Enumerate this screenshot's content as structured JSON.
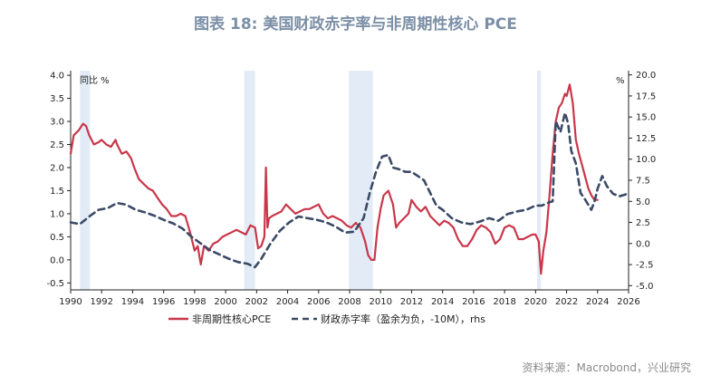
{
  "title": "图表 18: 美国财政赤字率与非周期性核心 PCE",
  "source": "资料来源：Macrobond，兴业研究",
  "chart_data": {
    "type": "line",
    "title": "图表 18: 美国财政赤字率与非周期性核心 PCE",
    "left_unit": "同比 %",
    "right_unit": "%",
    "x_ticks": [
      "1990",
      "1992",
      "1994",
      "1996",
      "1998",
      "2000",
      "2002",
      "2004",
      "2006",
      "2008",
      "2010",
      "2012",
      "2014",
      "2016",
      "2018",
      "2020",
      "2022",
      "2024",
      "2026"
    ],
    "left_ticks": [
      "4.0",
      "3.5",
      "3.0",
      "2.5",
      "2.0",
      "1.5",
      "1.0",
      "0.5",
      "0.0",
      "-0.5"
    ],
    "right_ticks": [
      "20.0",
      "17.5",
      "15.0",
      "12.5",
      "10.0",
      "7.5",
      "5.0",
      "2.5",
      "0.0",
      "-2.5",
      "-5.0"
    ],
    "xlim": [
      1990,
      2026
    ],
    "ylim_left": [
      -0.65,
      4.1
    ],
    "ylim_right": [
      -5.5,
      20.5
    ],
    "recessions": [
      [
        1990.6,
        1991.25
      ],
      [
        2001.2,
        2001.9
      ],
      [
        2007.95,
        2009.5
      ],
      [
        2020.1,
        2020.35
      ]
    ],
    "colors": {
      "pce": "#c8374a",
      "deficit": "#3b4a66",
      "recession": "#e3ecf6"
    },
    "series": [
      {
        "name": "非周期性核心PCE",
        "axis": "left",
        "x": [
          1990.0,
          1990.2,
          1990.5,
          1990.8,
          1991.0,
          1991.2,
          1991.5,
          1991.8,
          1992.0,
          1992.3,
          1992.6,
          1992.9,
          1993.0,
          1993.3,
          1993.6,
          1993.9,
          1994.1,
          1994.4,
          1994.7,
          1995.0,
          1995.3,
          1995.6,
          1995.9,
          1996.2,
          1996.5,
          1996.8,
          1997.1,
          1997.4,
          1997.7,
          1998.0,
          1998.2,
          1998.4,
          1998.6,
          1998.9,
          1999.2,
          1999.5,
          1999.8,
          2000.1,
          2000.4,
          2000.7,
          2001.0,
          2001.3,
          2001.6,
          2001.9,
          2002.1,
          2002.3,
          2002.5,
          2002.6,
          2002.7,
          2002.8,
          2003.0,
          2003.3,
          2003.6,
          2003.9,
          2004.2,
          2004.5,
          2004.8,
          2005.1,
          2005.4,
          2005.7,
          2006.0,
          2006.3,
          2006.6,
          2006.9,
          2007.2,
          2007.5,
          2007.8,
          2008.1,
          2008.4,
          2008.7,
          2009.0,
          2009.2,
          2009.4,
          2009.6,
          2009.8,
          2010.0,
          2010.2,
          2010.5,
          2010.8,
          2011.0,
          2011.2,
          2011.5,
          2011.8,
          2012.0,
          2012.3,
          2012.6,
          2012.9,
          2013.2,
          2013.5,
          2013.8,
          2014.1,
          2014.4,
          2014.7,
          2015.0,
          2015.3,
          2015.6,
          2015.9,
          2016.2,
          2016.5,
          2016.8,
          2017.1,
          2017.4,
          2017.7,
          2018.0,
          2018.3,
          2018.6,
          2018.9,
          2019.2,
          2019.5,
          2019.8,
          2020.0,
          2020.2,
          2020.35,
          2020.5,
          2020.7,
          2020.9,
          2021.1,
          2021.3,
          2021.5,
          2021.7,
          2021.9,
          2022.0,
          2022.2,
          2022.4,
          2022.6,
          2022.8,
          2023.0,
          2023.2,
          2023.4,
          2023.6,
          2023.8,
          2024.0
        ],
        "values": [
          2.3,
          2.7,
          2.8,
          2.95,
          2.9,
          2.7,
          2.5,
          2.55,
          2.6,
          2.5,
          2.45,
          2.6,
          2.5,
          2.3,
          2.35,
          2.2,
          2.0,
          1.75,
          1.65,
          1.55,
          1.5,
          1.35,
          1.2,
          1.1,
          0.95,
          0.95,
          1.0,
          0.95,
          0.6,
          0.2,
          0.3,
          -0.1,
          0.3,
          0.2,
          0.35,
          0.4,
          0.5,
          0.55,
          0.6,
          0.65,
          0.6,
          0.55,
          0.75,
          0.7,
          0.25,
          0.3,
          0.5,
          2.0,
          0.7,
          0.9,
          0.95,
          1.0,
          1.05,
          1.2,
          1.1,
          1.0,
          1.05,
          1.1,
          1.1,
          1.15,
          1.2,
          1.0,
          0.9,
          0.95,
          0.9,
          0.85,
          0.75,
          0.7,
          0.8,
          0.7,
          0.4,
          0.1,
          0.0,
          0.0,
          0.7,
          1.1,
          1.4,
          1.5,
          1.2,
          0.7,
          0.8,
          0.9,
          1.0,
          1.3,
          1.15,
          1.05,
          1.15,
          0.95,
          0.85,
          0.75,
          0.85,
          0.8,
          0.7,
          0.45,
          0.3,
          0.3,
          0.45,
          0.65,
          0.75,
          0.7,
          0.6,
          0.35,
          0.45,
          0.7,
          0.75,
          0.7,
          0.45,
          0.45,
          0.5,
          0.55,
          0.55,
          0.4,
          -0.3,
          0.2,
          0.6,
          1.4,
          2.3,
          3.0,
          3.3,
          3.4,
          3.6,
          3.55,
          3.8,
          3.4,
          2.6,
          2.3,
          2.05,
          1.8,
          1.55,
          1.4,
          1.3,
          1.3
        ]
      },
      {
        "name": "财政赤字率（盈余为负，-10M），rhs",
        "axis": "right",
        "x": [
          1990.0,
          1990.6,
          1991.2,
          1991.8,
          1992.4,
          1993.0,
          1993.6,
          1994.2,
          1994.8,
          1995.4,
          1996.0,
          1996.6,
          1997.2,
          1997.8,
          1998.4,
          1999.0,
          1999.6,
          2000.2,
          2000.8,
          2001.4,
          2001.9,
          2002.3,
          2002.9,
          2003.5,
          2004.1,
          2004.7,
          2005.3,
          2005.9,
          2006.5,
          2007.1,
          2007.7,
          2008.3,
          2008.9,
          2009.3,
          2009.7,
          2010.1,
          2010.5,
          2010.8,
          2011.2,
          2011.6,
          2012.0,
          2012.4,
          2012.8,
          2013.2,
          2013.6,
          2014.0,
          2014.6,
          2015.2,
          2015.8,
          2016.4,
          2017.0,
          2017.6,
          2018.2,
          2018.8,
          2019.4,
          2020.0,
          2020.4,
          2020.9,
          2021.1,
          2021.3,
          2021.6,
          2021.9,
          2022.1,
          2022.3,
          2022.6,
          2022.9,
          2023.2,
          2023.4,
          2023.6,
          2023.8,
          2024.0,
          2024.3,
          2024.6,
          2025.0,
          2025.4,
          2025.8,
          2026.0
        ],
        "values": [
          2.5,
          2.3,
          3.2,
          4.0,
          4.2,
          4.8,
          4.6,
          4.0,
          3.7,
          3.3,
          2.8,
          2.4,
          1.8,
          0.8,
          0.0,
          -0.8,
          -1.3,
          -1.8,
          -2.2,
          -2.4,
          -2.8,
          -1.8,
          0.0,
          1.5,
          2.5,
          3.2,
          3.0,
          2.8,
          2.5,
          2.0,
          1.3,
          1.4,
          3.0,
          6.0,
          8.5,
          10.3,
          10.5,
          9.0,
          8.8,
          8.5,
          8.5,
          8.0,
          7.5,
          6.0,
          4.5,
          4.0,
          3.0,
          2.5,
          2.3,
          2.6,
          3.0,
          2.7,
          3.5,
          3.8,
          4.0,
          4.5,
          4.5,
          4.9,
          5.0,
          14.5,
          13.2,
          15.5,
          14.2,
          11.0,
          9.5,
          6.0,
          5.2,
          4.6,
          4.0,
          5.0,
          6.5,
          8.0,
          6.8,
          5.9,
          5.6,
          5.8,
          6.2
        ]
      }
    ]
  }
}
